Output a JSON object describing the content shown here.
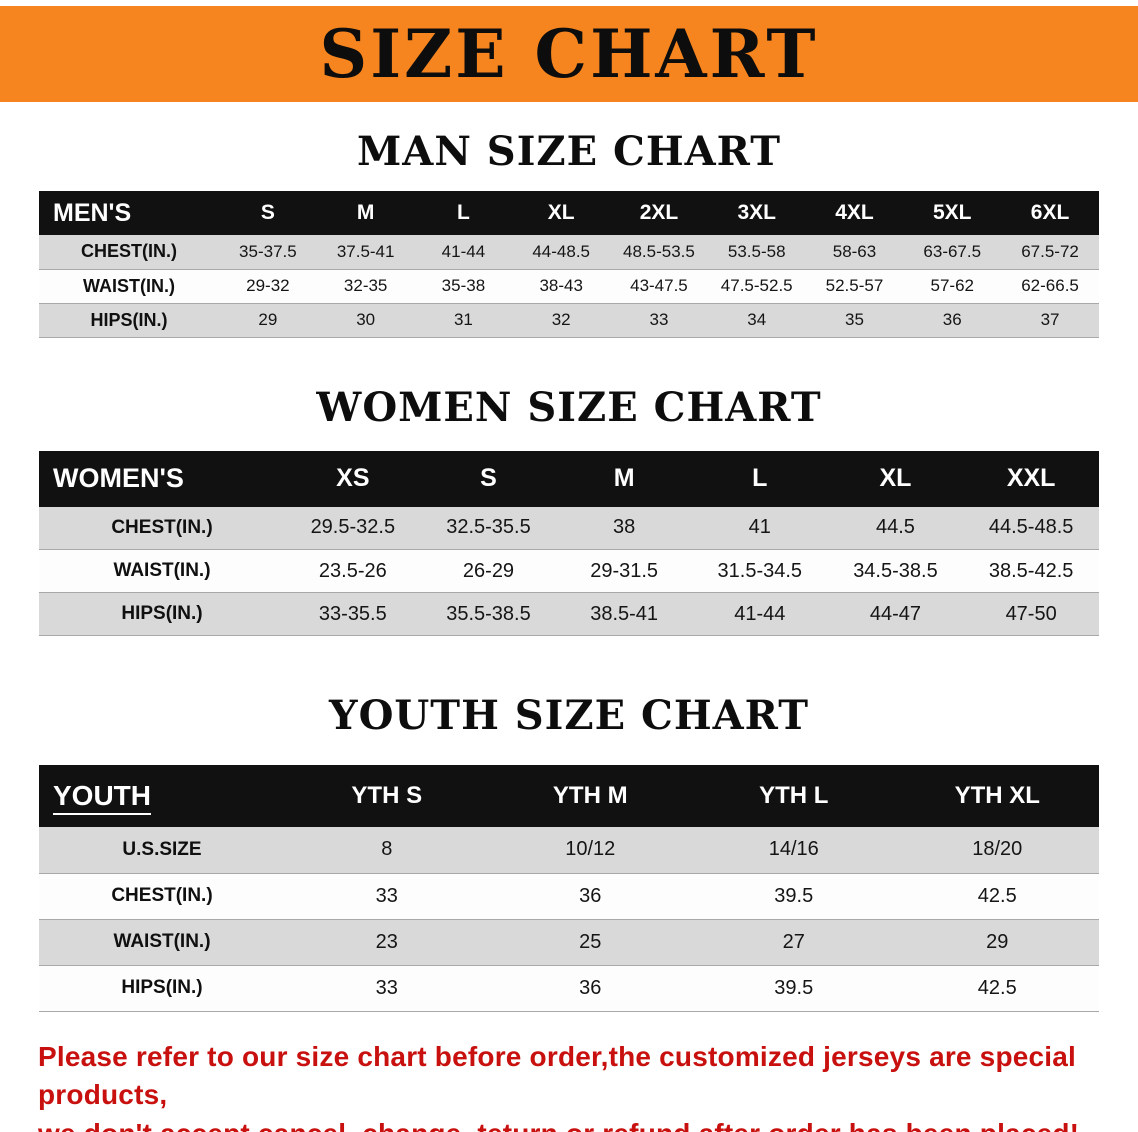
{
  "banner": {
    "title": "SIZE CHART"
  },
  "colors": {
    "banner_bg": "#F6851F",
    "table_header_bg": "#111111",
    "shaded_row_bg": "#D9D9D9",
    "disclaimer_red": "#C8100E"
  },
  "chart_data": [
    {
      "type": "table",
      "title": "MAN SIZE CHART",
      "columns": [
        "MEN'S",
        "S",
        "M",
        "L",
        "XL",
        "2XL",
        "3XL",
        "4XL",
        "5XL",
        "6XL"
      ],
      "rows": [
        [
          "CHEST(IN.)",
          "35-37.5",
          "37.5-41",
          "41-44",
          "44-48.5",
          "48.5-53.5",
          "53.5-58",
          "58-63",
          "63-67.5",
          "67.5-72"
        ],
        [
          "WAIST(IN.)",
          "29-32",
          "32-35",
          "35-38",
          "38-43",
          "43-47.5",
          "47.5-52.5",
          "52.5-57",
          "57-62",
          "62-66.5"
        ],
        [
          "HIPS(IN.)",
          "29",
          "30",
          "31",
          "32",
          "33",
          "34",
          "35",
          "36",
          "37"
        ]
      ]
    },
    {
      "type": "table",
      "title": "WOMEN SIZE CHART",
      "columns": [
        "WOMEN'S",
        "XS",
        "S",
        "M",
        "L",
        "XL",
        "XXL"
      ],
      "rows": [
        [
          "CHEST(IN.)",
          "29.5-32.5",
          "32.5-35.5",
          "38",
          "41",
          "44.5",
          "44.5-48.5"
        ],
        [
          "WAIST(IN.)",
          "23.5-26",
          "26-29",
          "29-31.5",
          "31.5-34.5",
          "34.5-38.5",
          "38.5-42.5"
        ],
        [
          "HIPS(IN.)",
          "33-35.5",
          "35.5-38.5",
          "38.5-41",
          "41-44",
          "44-47",
          "47-50"
        ]
      ]
    },
    {
      "type": "table",
      "title": "YOUTH SIZE CHART",
      "columns": [
        "YOUTH",
        "YTH S",
        "YTH M",
        "YTH L",
        "YTH XL"
      ],
      "rows": [
        [
          "U.S.SIZE",
          "8",
          "10/12",
          "14/16",
          "18/20"
        ],
        [
          "CHEST(IN.)",
          "33",
          "36",
          "39.5",
          "42.5"
        ],
        [
          "WAIST(IN.)",
          "23",
          "25",
          "27",
          "29"
        ],
        [
          "HIPS(IN.)",
          "33",
          "36",
          "39.5",
          "42.5"
        ]
      ]
    }
  ],
  "disclaimer": {
    "line1": "Please refer to our size chart before order,the customized jerseys are special products,",
    "line2": "we don't accept cancel, change, teturn or refund after order has been placed!"
  }
}
